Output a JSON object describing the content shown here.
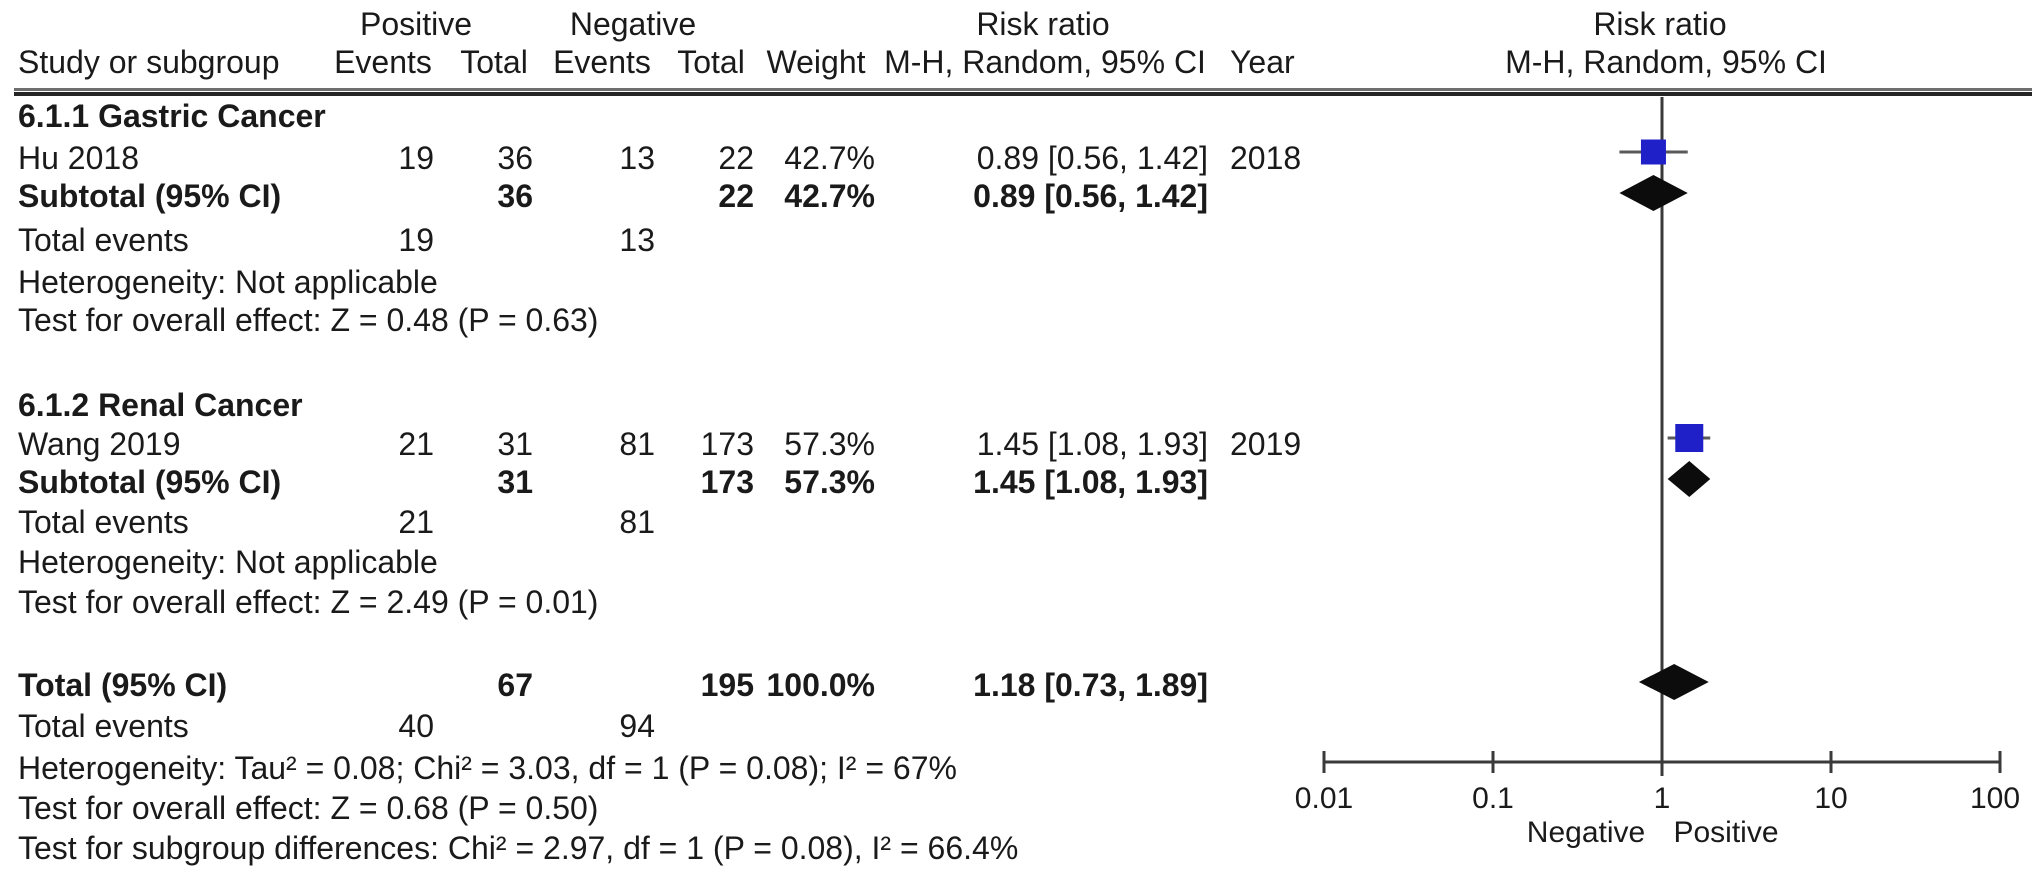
{
  "figure": {
    "background": "#ffffff",
    "text_color": "#1a1a1a",
    "square_color": "#2020c8",
    "diamond_color": "#0c0c0c",
    "ci_line_color": "#5a5a5a",
    "axis_color": "#3a3a3a"
  },
  "header": {
    "group_positive": "Positive",
    "group_negative": "Negative",
    "group_risk_ratio": "Risk ratio",
    "group_risk_ratio_plot": "Risk ratio",
    "study": "Study or subgroup",
    "events_pos": "Events",
    "total_pos": "Total",
    "events_neg": "Events",
    "total_neg": "Total",
    "weight": "Weight",
    "mh_random": "M-H, Random, 95% CI",
    "year": "Year",
    "mh_random_plot": "M-H, Random, 95% CI"
  },
  "table": {
    "rows": [
      {
        "kind": "group",
        "label": "6.1.1 Gastric Cancer"
      },
      {
        "kind": "study",
        "label": "Hu 2018",
        "e1": "19",
        "t1": "36",
        "e2": "13",
        "t2": "22",
        "w": "42.7%",
        "rr": "0.89 [0.56, 1.42]",
        "year": "2018"
      },
      {
        "kind": "subtotal",
        "label": "Subtotal (95% CI)",
        "t1": "36",
        "t2": "22",
        "w": "42.7%",
        "rr": "0.89 [0.56, 1.42]"
      },
      {
        "kind": "plain",
        "label": "Total events",
        "e1": "19",
        "e2": "13"
      },
      {
        "kind": "plain",
        "label": "Heterogeneity: Not applicable"
      },
      {
        "kind": "plain",
        "label": "Test for overall effect: Z = 0.48 (P = 0.63)"
      },
      {
        "kind": "group",
        "label": "6.1.2 Renal Cancer"
      },
      {
        "kind": "study",
        "label": "Wang 2019",
        "e1": "21",
        "t1": "31",
        "e2": "81",
        "t2": "173",
        "w": "57.3%",
        "rr": "1.45 [1.08, 1.93]",
        "year": "2019"
      },
      {
        "kind": "subtotal",
        "label": "Subtotal (95% CI)",
        "t1": "31",
        "t2": "173",
        "w": "57.3%",
        "rr": "1.45 [1.08, 1.93]"
      },
      {
        "kind": "plain",
        "label": "Total events",
        "e1": "21",
        "e2": "81"
      },
      {
        "kind": "plain",
        "label": "Heterogeneity: Not applicable"
      },
      {
        "kind": "plain",
        "label": "Test for overall effect: Z = 2.49 (P = 0.01)"
      },
      {
        "kind": "subtotal",
        "label": "Total (95% CI)",
        "t1": "67",
        "t2": "195",
        "w": "100.0%",
        "rr": "1.18 [0.73, 1.89]"
      },
      {
        "kind": "plain",
        "label": "Total events",
        "e1": "40",
        "e2": "94"
      },
      {
        "kind": "plain",
        "label": "Heterogeneity: Tau² = 0.08; Chi² = 3.03, df = 1 (P = 0.08); I² = 67%"
      },
      {
        "kind": "plain",
        "label": "Test for overall effect: Z = 0.68 (P = 0.50)"
      },
      {
        "kind": "plain",
        "label": "Test for subgroup differences: Chi² = 2.97, df = 1 (P = 0.08), I² = 66.4%"
      }
    ]
  },
  "chart_data": {
    "type": "forest",
    "effect_measure": "Risk ratio",
    "method": "M-H, Random, 95% CI",
    "x_scale": "log10",
    "x_ticks": [
      0.01,
      0.1,
      1,
      10,
      100
    ],
    "x_tick_labels": [
      "0.01",
      "0.1",
      "1",
      "10",
      "100"
    ],
    "null_line": 1,
    "direction_label_left": "Negative",
    "direction_label_right": "Positive",
    "studies": [
      {
        "subgroup": "6.1.1 Gastric Cancer",
        "study": "Hu 2018",
        "year": 2018,
        "events_positive": 19,
        "total_positive": 36,
        "events_negative": 13,
        "total_negative": 22,
        "weight_pct": 42.7,
        "rr": 0.89,
        "ci_low": 0.56,
        "ci_high": 1.42
      },
      {
        "subgroup": "6.1.2 Renal Cancer",
        "study": "Wang 2019",
        "year": 2019,
        "events_positive": 21,
        "total_positive": 31,
        "events_negative": 81,
        "total_negative": 173,
        "weight_pct": 57.3,
        "rr": 1.45,
        "ci_low": 1.08,
        "ci_high": 1.93
      }
    ],
    "subtotals": [
      {
        "subgroup": "6.1.1 Gastric Cancer",
        "total_positive": 36,
        "total_negative": 22,
        "weight_pct": 42.7,
        "rr": 0.89,
        "ci_low": 0.56,
        "ci_high": 1.42,
        "total_events_positive": 19,
        "total_events_negative": 13,
        "heterogeneity": "Not applicable",
        "overall_effect": "Z = 0.48 (P = 0.63)"
      },
      {
        "subgroup": "6.1.2 Renal Cancer",
        "total_positive": 31,
        "total_negative": 173,
        "weight_pct": 57.3,
        "rr": 1.45,
        "ci_low": 1.08,
        "ci_high": 1.93,
        "total_events_positive": 21,
        "total_events_negative": 81,
        "heterogeneity": "Not applicable",
        "overall_effect": "Z = 2.49 (P = 0.01)"
      }
    ],
    "total": {
      "total_positive": 67,
      "total_negative": 195,
      "weight_pct": 100.0,
      "rr": 1.18,
      "ci_low": 0.73,
      "ci_high": 1.89,
      "total_events_positive": 40,
      "total_events_negative": 94,
      "heterogeneity": "Tau² = 0.08; Chi² = 3.03, df = 1 (P = 0.08); I² = 67%",
      "overall_effect": "Z = 0.68 (P = 0.50)",
      "subgroup_differences": "Chi² = 2.97, df = 1 (P = 0.08), I² = 66.4%"
    }
  }
}
